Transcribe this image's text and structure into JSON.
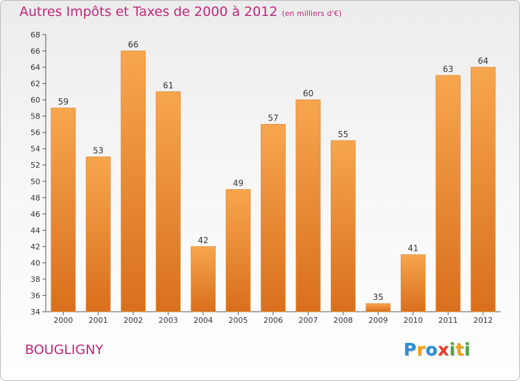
{
  "title": "Autres Impôts et Taxes de 2000 à 2012",
  "unit": "(en milliers d'€)",
  "commune": "BOUGLIGNY",
  "logo": {
    "letters": [
      {
        "ch": "P",
        "color": "#2a8fd6"
      },
      {
        "ch": "r",
        "color": "#f2a21a"
      },
      {
        "ch": "o",
        "color": "#2a8fd6"
      },
      {
        "ch": "x",
        "color": "#e53b2a"
      },
      {
        "ch": "i",
        "color": "#4aa83b"
      },
      {
        "ch": "t",
        "color": "#f2a21a"
      },
      {
        "ch": "i",
        "color": "#4aa83b"
      }
    ]
  },
  "chart_data": {
    "type": "bar",
    "categories": [
      "2000",
      "2001",
      "2002",
      "2003",
      "2004",
      "2005",
      "2006",
      "2007",
      "2008",
      "2009",
      "2010",
      "2011",
      "2012"
    ],
    "values": [
      59,
      53,
      66,
      61,
      42,
      49,
      57,
      60,
      55,
      35,
      41,
      63,
      64
    ],
    "ylim": [
      34,
      68
    ],
    "yticks": [
      34,
      36,
      38,
      40,
      42,
      44,
      46,
      48,
      50,
      52,
      54,
      56,
      58,
      60,
      62,
      64,
      66,
      68
    ],
    "grid": false,
    "colors": {
      "bar_light": "#f7a64e",
      "bar_dark": "#d96f1c",
      "bar_edge": "#e08a38",
      "label": "#333333",
      "axis": "#555555"
    }
  }
}
